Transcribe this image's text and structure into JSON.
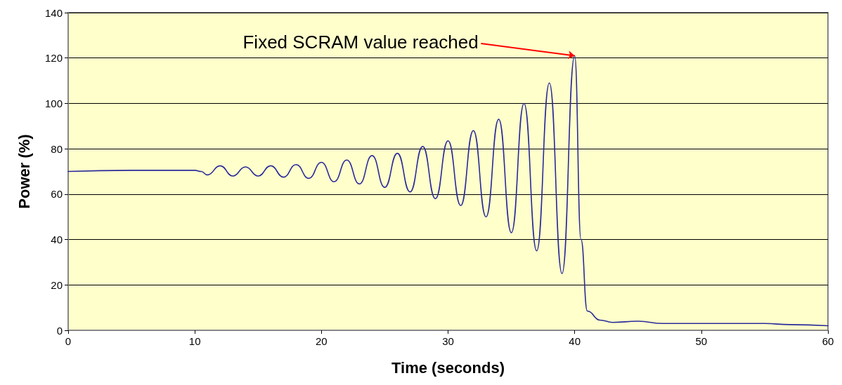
{
  "chart_data": {
    "type": "line",
    "xlabel": "Time (seconds)",
    "ylabel": "Power (%)",
    "xlim": [
      0,
      60
    ],
    "xticks": [
      0,
      10,
      20,
      30,
      40,
      50,
      60
    ],
    "ylim": [
      0,
      140
    ],
    "yticks": [
      0,
      20,
      40,
      60,
      80,
      100,
      120,
      140
    ],
    "grid": "y",
    "marker": "none",
    "line_style": "solid",
    "annotations": [
      {
        "text": "Fixed SCRAM value reached",
        "x": 40,
        "y": 121
      }
    ],
    "series": [
      {
        "color": "#2b2b9a",
        "x": [
          0,
          5,
          10,
          10.5,
          11,
          12,
          13,
          14,
          15,
          16,
          17,
          18,
          19,
          20,
          21,
          22,
          23,
          24,
          25,
          26,
          27,
          28,
          29,
          30,
          31,
          32,
          33,
          34,
          35,
          36,
          37,
          38,
          39,
          40,
          40.5,
          41,
          42,
          43,
          45,
          47,
          50,
          55,
          57,
          60
        ],
        "values": [
          70,
          70.5,
          70.5,
          70,
          68.5,
          72.5,
          68,
          72,
          68,
          72.5,
          67.5,
          73,
          67,
          74,
          65.5,
          75,
          64.5,
          77,
          63,
          78,
          61,
          81,
          58,
          83.5,
          55,
          88,
          50,
          93,
          43,
          100,
          35,
          109,
          25,
          121,
          40,
          8.5,
          4.5,
          3.5,
          4,
          3,
          3,
          3,
          2.5,
          2
        ]
      }
    ]
  }
}
